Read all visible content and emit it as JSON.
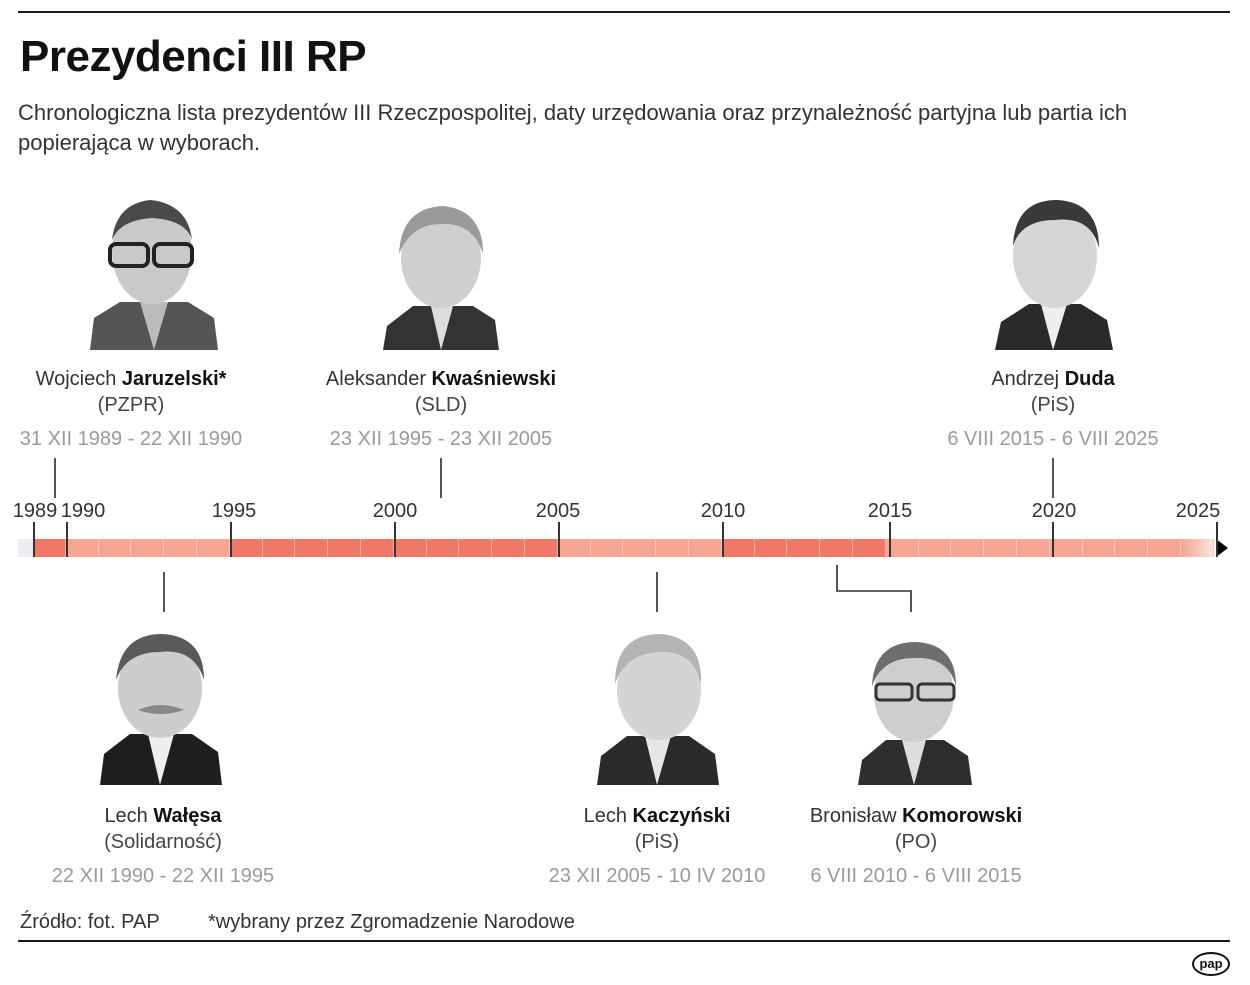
{
  "header": {
    "title": "Prezydenci III RP",
    "subtitle": "Chronologiczna lista prezydentów III Rzeczpospolitej, daty urzędowania oraz przynależność partyjna lub partia ich popierająca w wyborach."
  },
  "presidents": [
    {
      "first_name": "Wojciech",
      "last_name": "Jaruzelski*",
      "party": "(PZPR)",
      "term": "31 XII 1989 - 22 XII 1990",
      "position": "top"
    },
    {
      "first_name": "Lech",
      "last_name": "Wałęsa",
      "party": "(Solidarność)",
      "term": "22 XII 1990 - 22 XII 1995",
      "position": "bottom"
    },
    {
      "first_name": "Aleksander",
      "last_name": "Kwaśniewski",
      "party": "(SLD)",
      "term": "23 XII 1995 - 23 XII 2005",
      "position": "top"
    },
    {
      "first_name": "Lech",
      "last_name": "Kaczyński",
      "party": "(PiS)",
      "term": "23 XII 2005 - 10 IV 2010",
      "position": "bottom"
    },
    {
      "first_name": "Bronisław",
      "last_name": "Komorowski",
      "party": "(PO)",
      "term": "6 VIII 2010 - 6 VIII 2015",
      "position": "bottom"
    },
    {
      "first_name": "Andrzej",
      "last_name": "Duda",
      "party": "(PiS)",
      "term": "6 VIII 2015 - 6 VIII 2025",
      "position": "top"
    }
  ],
  "timeline": {
    "year_labels": [
      "1989",
      "1990",
      "1995",
      "2000",
      "2005",
      "2010",
      "2015",
      "2020",
      "2025"
    ],
    "colors": {
      "dark": "#ef7866",
      "light": "#f5a591",
      "pre": "#eceef1",
      "arrow": "#000000"
    }
  },
  "footer": {
    "source": "Źródło: fot. PAP",
    "note": "*wybrany przez Zgromadzenie Narodowe",
    "logo": "pap"
  },
  "chart_data": {
    "type": "timeline",
    "title": "Prezydenci III RP",
    "x_axis": {
      "min": 1989,
      "max": 2025,
      "ticks": [
        1989,
        1990,
        1995,
        2000,
        2005,
        2010,
        2015,
        2020,
        2025
      ]
    },
    "periods": [
      {
        "name": "Wojciech Jaruzelski",
        "party": "PZPR",
        "start": "1989-12-31",
        "end": "1990-12-22"
      },
      {
        "name": "Lech Wałęsa",
        "party": "Solidarność",
        "start": "1990-12-22",
        "end": "1995-12-22"
      },
      {
        "name": "Aleksander Kwaśniewski",
        "party": "SLD",
        "start": "1995-12-23",
        "end": "2005-12-23"
      },
      {
        "name": "Lech Kaczyński",
        "party": "PiS",
        "start": "2005-12-23",
        "end": "2010-04-10"
      },
      {
        "name": "Bronisław Komorowski",
        "party": "PO",
        "start": "2010-08-06",
        "end": "2015-08-06"
      },
      {
        "name": "Andrzej Duda",
        "party": "PiS",
        "start": "2015-08-06",
        "end": "2025-08-06"
      }
    ]
  }
}
